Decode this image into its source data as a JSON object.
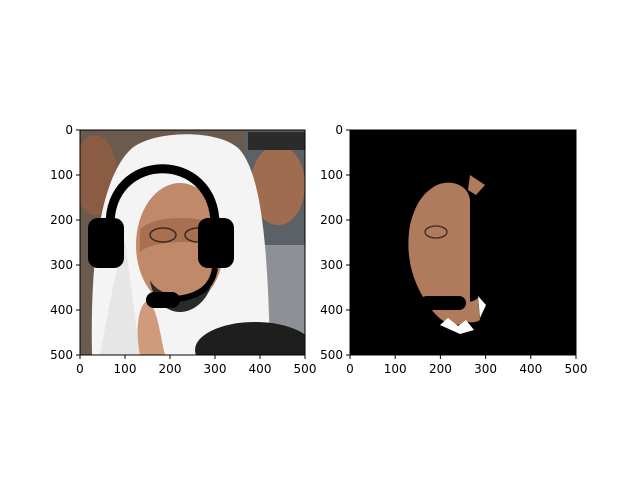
{
  "figure": {
    "background": "#ffffff"
  },
  "chart_data": [
    {
      "type": "image",
      "description_role": "left-panel",
      "xlim": [
        0,
        500
      ],
      "ylim": [
        500,
        0
      ],
      "x_ticks": [
        0,
        100,
        200,
        300,
        400,
        500
      ],
      "y_ticks": [
        0,
        100,
        200,
        300,
        400,
        500
      ],
      "x_tick_labels": [
        "0",
        "100",
        "200",
        "300",
        "400",
        "500"
      ],
      "y_tick_labels": [
        "0",
        "100",
        "200",
        "300",
        "400",
        "500"
      ],
      "content_icons": [
        "portrait-photo",
        "headset-overlay"
      ],
      "colors": {
        "overlay": "#000000",
        "skin": "#c08a6a",
        "garment": "#f4f4f4",
        "hair": "#2a2a2a"
      }
    },
    {
      "type": "image",
      "description_role": "right-panel",
      "xlim": [
        0,
        500
      ],
      "ylim": [
        500,
        0
      ],
      "x_ticks": [
        0,
        100,
        200,
        300,
        400,
        500
      ],
      "y_ticks": [
        0,
        100,
        200,
        300,
        400,
        500
      ],
      "x_tick_labels": [
        "0",
        "100",
        "200",
        "300",
        "400",
        "500"
      ],
      "y_tick_labels": [
        "0",
        "100",
        "200",
        "300",
        "400",
        "500"
      ],
      "content_icons": [
        "masked-face-region"
      ],
      "colors": {
        "mask_background": "#000000",
        "skin": "#b07a5c",
        "highlight": "#ffffff"
      }
    }
  ]
}
